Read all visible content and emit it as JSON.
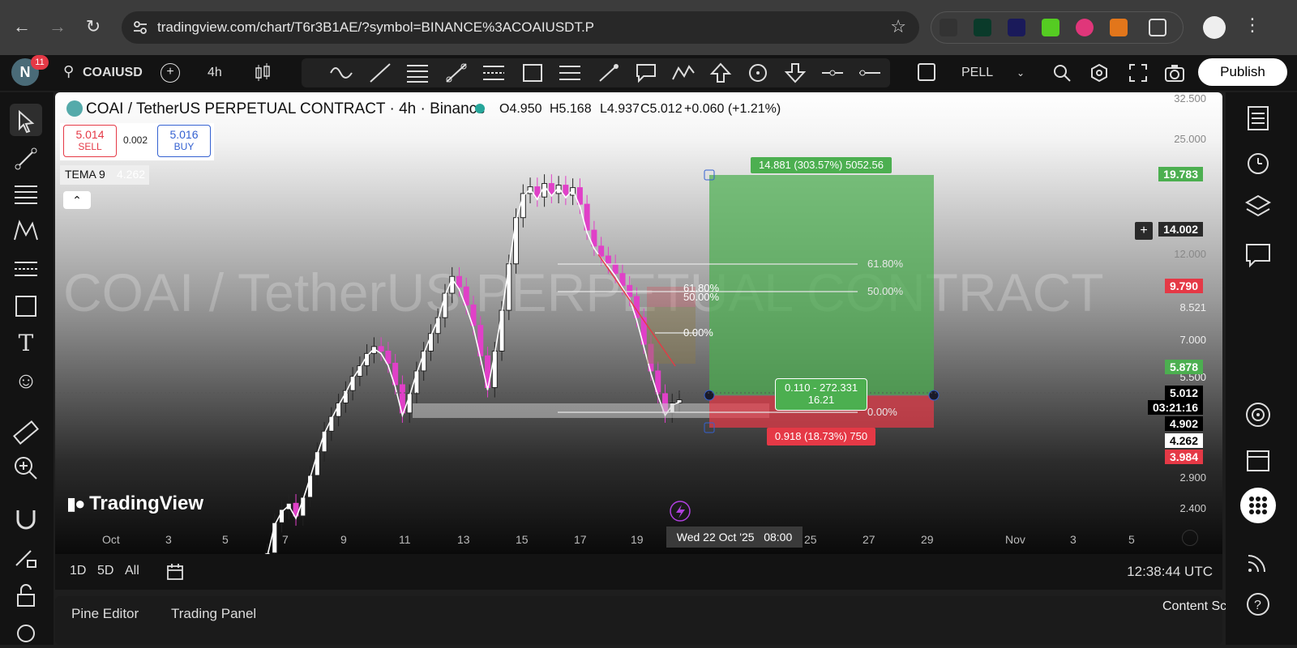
{
  "browser": {
    "url": "tradingview.com/chart/T6r3B1AE/?symbol=BINANCE%3ACOAIUSDT.P",
    "notification_count": "11",
    "avatar_letter": "N"
  },
  "toolbar": {
    "symbol": "COAIUSD",
    "interval": "4h",
    "layout_name": "PELL",
    "publish_label": "Publish"
  },
  "legend": {
    "title": "COAI / TetherUS PERPETUAL CONTRACT · 4h · Binance",
    "open": "O4.950",
    "high": "H5.168",
    "low": "L4.937",
    "close": "C5.012",
    "change": "+0.060 (+1.21%)",
    "sell_price": "5.014",
    "sell_label": "SELL",
    "spread": "0.002",
    "buy_price": "5.016",
    "buy_label": "BUY",
    "indicator_name": "TEMA 9",
    "indicator_value": "4.262"
  },
  "watermark": "COAI / TetherUS PERPETUAL CONTRACT",
  "tv_logo": "TradingView",
  "position": {
    "target_label": "14.881 (303.57%) 5052.56",
    "stop_label": "0.918 (18.73%) 750",
    "center_line1": "0.110 - 272.331",
    "center_line2": "16.21"
  },
  "fib": {
    "big": [
      "61.80%",
      "50.00%",
      "0.00%"
    ],
    "small": [
      "61.80%",
      "50.00%",
      "0.00%"
    ]
  },
  "price_axis": {
    "ticks": [
      "32.500",
      "25.000",
      "12.000",
      "8.521",
      "7.000",
      "5.500",
      "2.900",
      "2.400"
    ],
    "badges": [
      {
        "text": "19.783",
        "color": "#4caf50",
        "fg": "#ffffff"
      },
      {
        "text": "14.002",
        "color": "#2a2a2a",
        "fg": "#ffffff"
      },
      {
        "text": "9.790",
        "color": "#e53946",
        "fg": "#ffffff"
      },
      {
        "text": "5.878",
        "color": "#4caf50",
        "fg": "#ffffff"
      },
      {
        "text": "5.012",
        "color": "#000000",
        "fg": "#ffffff"
      },
      {
        "text": "03:21:16",
        "color": "#000000",
        "fg": "#ffffff"
      },
      {
        "text": "4.902",
        "color": "#000000",
        "fg": "#ffffff"
      },
      {
        "text": "4.262",
        "color": "#ffffff",
        "fg": "#000000"
      },
      {
        "text": "3.984",
        "color": "#e53946",
        "fg": "#ffffff"
      }
    ]
  },
  "time_axis": {
    "ticks": [
      "Oct",
      "3",
      "5",
      "7",
      "9",
      "11",
      "13",
      "15",
      "17",
      "19",
      "25",
      "27",
      "29",
      "Nov",
      "3",
      "5"
    ],
    "crosshair": "Wed 22 Oct '25   08:00"
  },
  "bottom": {
    "ranges": [
      "1D",
      "5D",
      "All"
    ],
    "clock": "12:38:44 UTC",
    "tabs": [
      "Pine Editor",
      "Trading Panel"
    ],
    "content_script": "Content Script"
  },
  "colors": {
    "up": "#ffffff",
    "down": "#e040c8",
    "profit": "#4caf50",
    "loss": "#e53946"
  },
  "chart_data": {
    "type": "candlestick",
    "symbol": "COAI / TetherUS PERPETUAL CONTRACT",
    "exchange": "Binance",
    "interval": "4h",
    "ohlc_last": {
      "open": 4.95,
      "high": 5.168,
      "low": 4.937,
      "close": 5.012,
      "change": 0.06,
      "change_pct": 1.21
    },
    "indicator": {
      "name": "TEMA 9",
      "value": 4.262
    },
    "close_series": [
      1.9,
      2.3,
      2.5,
      2.6,
      2.4,
      2.7,
      3.1,
      3.6,
      4.1,
      4.5,
      4.9,
      5.3,
      5.8,
      6.2,
      6.7,
      7.0,
      6.8,
      6.3,
      5.5,
      4.6,
      5.2,
      6.0,
      6.8,
      7.6,
      8.4,
      9.8,
      10.9,
      10.2,
      9.1,
      8.0,
      6.6,
      5.4,
      6.8,
      8.8,
      11.8,
      15.8,
      18.4,
      19.2,
      18.0,
      19.6,
      18.4,
      19.4,
      18.2,
      19.1,
      17.2,
      14.6,
      13.2,
      12.4,
      11.8,
      11.1,
      10.3,
      9.6,
      8.4,
      7.1,
      6.0,
      5.2,
      4.6,
      4.9,
      5.0
    ],
    "long_position": {
      "entry": 4.902,
      "target": 19.783,
      "stop": 3.984
    }
  }
}
